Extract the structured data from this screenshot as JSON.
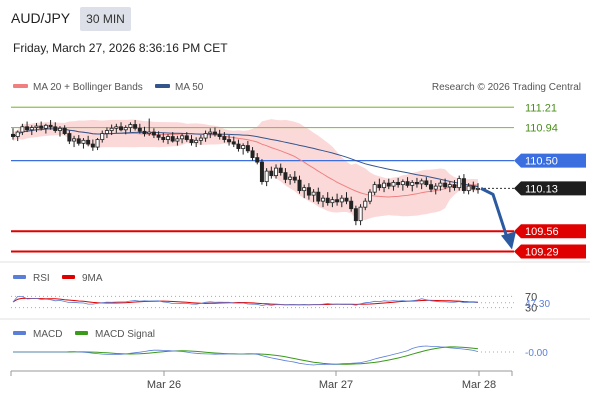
{
  "header": {
    "symbol": "AUD/JPY",
    "timeframe": "30 MIN",
    "datetime": "Friday, March 27, 2026 8:36:16 PM CET"
  },
  "colors": {
    "ma20": "#f08080",
    "ma50": "#34558b",
    "bb_fill": "#fbd9d9",
    "support": "#e00000",
    "pivot": "#3b6fe0",
    "resistance": "#8bc34a",
    "up": "#ffffff",
    "down": "#222222",
    "rsi": "#5b7fd6",
    "rsi_ma": "#e00000",
    "macd": "#5b7fd6",
    "macd_signal": "#3a9a1a",
    "arrow": "#2c5aa0"
  },
  "legend": {
    "ma20": "MA 20 + Bollinger Bands",
    "ma50": "MA 50",
    "source": "Research © 2026 Trading Central",
    "rsi": "RSI",
    "rsi_ma": "9MA",
    "macd": "MACD",
    "macd_signal": "MACD Signal"
  },
  "chart_data": {
    "type": "candlestick",
    "x_ticks": [
      "Mar 26",
      "Mar 27",
      "Mar 28"
    ],
    "last_price": "110.13",
    "levels": [
      {
        "value": 111.21,
        "label": "111.21",
        "kind": "resistance"
      },
      {
        "value": 110.94,
        "label": "110.94",
        "kind": "resistance"
      },
      {
        "value": 110.5,
        "label": "110.50",
        "kind": "pivot"
      },
      {
        "value": 109.56,
        "label": "109.56",
        "kind": "support"
      },
      {
        "value": 109.29,
        "label": "109.29",
        "kind": "support"
      }
    ],
    "price_range": [
      109.19,
      111.32
    ],
    "forecast": {
      "from": 110.13,
      "to": 109.29,
      "direction": "down"
    },
    "rsi": {
      "value_label": "47.30",
      "level_labels": [
        "70",
        "30"
      ],
      "ylim": [
        0,
        100
      ]
    },
    "macd": {
      "value_label": "-0.00"
    },
    "candles": [
      [
        110.85,
        110.93,
        110.78,
        110.82
      ],
      [
        110.82,
        110.9,
        110.76,
        110.88
      ],
      [
        110.88,
        110.99,
        110.84,
        110.95
      ],
      [
        110.95,
        111.02,
        110.88,
        110.91
      ],
      [
        110.91,
        110.97,
        110.84,
        110.94
      ],
      [
        110.94,
        111.0,
        110.88,
        110.96
      ],
      [
        110.96,
        111.02,
        110.9,
        110.93
      ],
      [
        110.93,
        110.99,
        110.86,
        110.97
      ],
      [
        110.97,
        111.04,
        110.91,
        110.95
      ],
      [
        110.95,
        111.01,
        110.87,
        110.9
      ],
      [
        110.9,
        110.96,
        110.82,
        110.93
      ],
      [
        110.93,
        110.97,
        110.84,
        110.86
      ],
      [
        110.86,
        110.9,
        110.72,
        110.76
      ],
      [
        110.76,
        110.83,
        110.68,
        110.79
      ],
      [
        110.79,
        110.84,
        110.7,
        110.73
      ],
      [
        110.73,
        110.8,
        110.66,
        110.77
      ],
      [
        110.77,
        110.83,
        110.69,
        110.72
      ],
      [
        110.72,
        110.78,
        110.63,
        110.68
      ],
      [
        110.68,
        110.8,
        110.64,
        110.78
      ],
      [
        110.78,
        110.9,
        110.74,
        110.86
      ],
      [
        110.86,
        110.94,
        110.8,
        110.9
      ],
      [
        110.9,
        110.98,
        110.84,
        110.93
      ],
      [
        110.93,
        110.99,
        110.87,
        110.95
      ],
      [
        110.95,
        111.01,
        110.89,
        110.91
      ],
      [
        110.91,
        110.97,
        110.85,
        110.94
      ],
      [
        110.94,
        111.01,
        110.88,
        110.98
      ],
      [
        110.98,
        111.04,
        110.9,
        110.93
      ],
      [
        110.93,
        110.99,
        110.86,
        110.89
      ],
      [
        110.89,
        110.95,
        110.82,
        110.86
      ],
      [
        110.86,
        111.06,
        110.83,
        110.88
      ],
      [
        110.88,
        110.93,
        110.8,
        110.84
      ],
      [
        110.84,
        110.89,
        110.77,
        110.81
      ],
      [
        110.81,
        110.87,
        110.74,
        110.78
      ],
      [
        110.78,
        110.85,
        110.72,
        110.82
      ],
      [
        110.82,
        110.88,
        110.74,
        110.76
      ],
      [
        110.76,
        110.83,
        110.7,
        110.79
      ],
      [
        110.79,
        110.86,
        110.73,
        110.83
      ],
      [
        110.83,
        110.88,
        110.75,
        110.78
      ],
      [
        110.78,
        110.84,
        110.7,
        110.74
      ],
      [
        110.74,
        110.81,
        110.68,
        110.77
      ],
      [
        110.77,
        110.84,
        110.71,
        110.8
      ],
      [
        110.8,
        110.9,
        110.75,
        110.86
      ],
      [
        110.86,
        110.93,
        110.8,
        110.88
      ],
      [
        110.88,
        110.94,
        110.82,
        110.85
      ],
      [
        110.85,
        110.91,
        110.78,
        110.82
      ],
      [
        110.82,
        110.88,
        110.74,
        110.78
      ],
      [
        110.78,
        110.84,
        110.7,
        110.75
      ],
      [
        110.75,
        110.82,
        110.68,
        110.72
      ],
      [
        110.72,
        110.78,
        110.62,
        110.66
      ],
      [
        110.66,
        110.73,
        110.58,
        110.7
      ],
      [
        110.7,
        110.76,
        110.6,
        110.63
      ],
      [
        110.63,
        110.68,
        110.5,
        110.54
      ],
      [
        110.54,
        110.6,
        110.45,
        110.48
      ],
      [
        110.48,
        110.52,
        110.18,
        110.22
      ],
      [
        110.22,
        110.4,
        110.16,
        110.36
      ],
      [
        110.36,
        110.42,
        110.26,
        110.3
      ],
      [
        110.3,
        110.45,
        110.26,
        110.4
      ],
      [
        110.4,
        110.46,
        110.3,
        110.34
      ],
      [
        110.34,
        110.4,
        110.2,
        110.25
      ],
      [
        110.25,
        110.32,
        110.18,
        110.28
      ],
      [
        110.28,
        110.36,
        110.2,
        110.24
      ],
      [
        110.24,
        110.3,
        110.06,
        110.1
      ],
      [
        110.1,
        110.18,
        110.0,
        110.14
      ],
      [
        110.14,
        110.2,
        109.98,
        110.04
      ],
      [
        110.04,
        110.12,
        109.95,
        110.08
      ],
      [
        110.08,
        110.14,
        109.92,
        109.96
      ],
      [
        109.96,
        110.04,
        109.88,
        110.0
      ],
      [
        110.0,
        110.08,
        109.9,
        109.94
      ],
      [
        109.94,
        110.02,
        109.88,
        109.98
      ],
      [
        109.98,
        110.06,
        109.9,
        109.95
      ],
      [
        109.95,
        110.04,
        109.88,
        110.0
      ],
      [
        110.0,
        110.08,
        109.92,
        109.96
      ],
      [
        109.96,
        110.02,
        109.82,
        109.86
      ],
      [
        109.86,
        109.9,
        109.64,
        109.7
      ],
      [
        109.7,
        109.92,
        109.64,
        109.88
      ],
      [
        109.88,
        110.0,
        109.84,
        109.96
      ],
      [
        109.96,
        110.12,
        109.92,
        110.08
      ],
      [
        110.08,
        110.22,
        110.04,
        110.18
      ],
      [
        110.18,
        110.26,
        110.1,
        110.14
      ],
      [
        110.14,
        110.24,
        110.08,
        110.2
      ],
      [
        110.2,
        110.26,
        110.12,
        110.16
      ],
      [
        110.16,
        110.24,
        110.1,
        110.21
      ],
      [
        110.21,
        110.27,
        110.14,
        110.18
      ],
      [
        110.18,
        110.25,
        110.1,
        110.22
      ],
      [
        110.22,
        110.28,
        110.14,
        110.17
      ],
      [
        110.17,
        110.24,
        110.09,
        110.21
      ],
      [
        110.21,
        110.27,
        110.14,
        110.19
      ],
      [
        110.19,
        110.26,
        110.12,
        110.23
      ],
      [
        110.23,
        110.28,
        110.15,
        110.18
      ],
      [
        110.18,
        110.24,
        110.08,
        110.12
      ],
      [
        110.12,
        110.2,
        110.05,
        110.16
      ],
      [
        110.16,
        110.24,
        110.1,
        110.2
      ],
      [
        110.2,
        110.26,
        110.12,
        110.15
      ],
      [
        110.15,
        110.22,
        110.08,
        110.18
      ],
      [
        110.18,
        110.24,
        110.1,
        110.14
      ],
      [
        110.14,
        110.3,
        110.1,
        110.26
      ],
      [
        110.26,
        110.32,
        110.06,
        110.1
      ],
      [
        110.1,
        110.2,
        110.05,
        110.16
      ],
      [
        110.16,
        110.22,
        110.08,
        110.12
      ],
      [
        110.12,
        110.2,
        110.06,
        110.13
      ]
    ]
  }
}
